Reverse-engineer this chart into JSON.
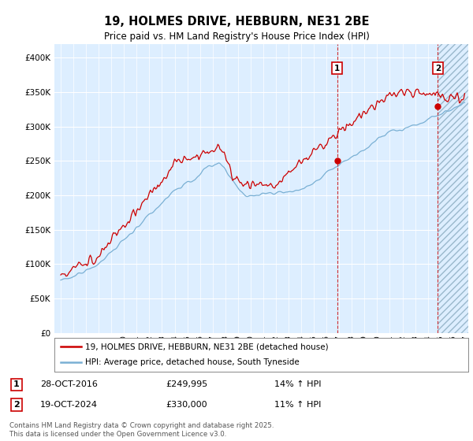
{
  "title": "19, HOLMES DRIVE, HEBBURN, NE31 2BE",
  "subtitle": "Price paid vs. HM Land Registry's House Price Index (HPI)",
  "legend_label_red": "19, HOLMES DRIVE, HEBBURN, NE31 2BE (detached house)",
  "legend_label_blue": "HPI: Average price, detached house, South Tyneside",
  "transaction1_date": "28-OCT-2016",
  "transaction1_price": "£249,995",
  "transaction1_hpi": "14% ↑ HPI",
  "transaction2_date": "19-OCT-2024",
  "transaction2_price": "£330,000",
  "transaction2_hpi": "11% ↑ HPI",
  "footer": "Contains HM Land Registry data © Crown copyright and database right 2025.\nThis data is licensed under the Open Government Licence v3.0.",
  "red_color": "#cc0000",
  "blue_color": "#7ab0d4",
  "vline1_x": 2016.83,
  "vline2_x": 2024.8,
  "marker1_price": 249995,
  "marker2_price": 330000,
  "ylim": [
    0,
    420000
  ],
  "xlim_left": 1994.5,
  "xlim_right": 2027.2,
  "background_color": "#ddeeff",
  "hatch_color": "#c8d8e8"
}
